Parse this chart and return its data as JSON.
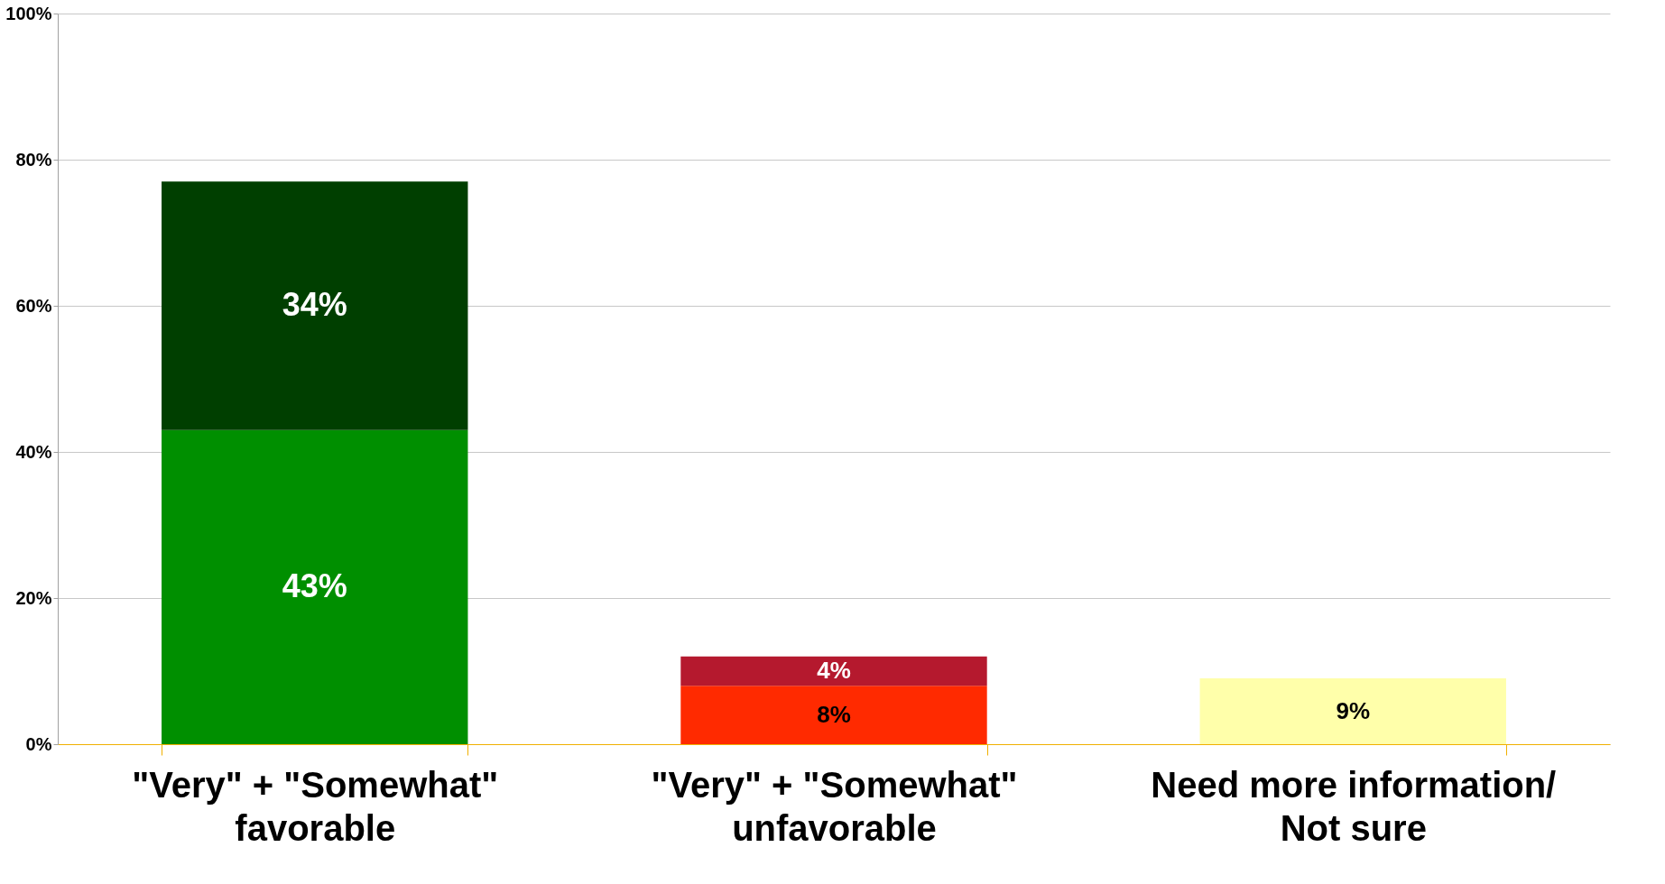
{
  "chart_data": {
    "type": "bar",
    "stacked": true,
    "categories": [
      "\"Very\" + \"Somewhat\"\nfavorable",
      "\"Very\" + \"Somewhat\"\nunfavorable",
      "Need more information/\nNot sure"
    ],
    "series": [
      {
        "colors": [
          "#008f00",
          "#ff2a00",
          "#ffffaa"
        ],
        "values": [
          43,
          8,
          9
        ]
      },
      {
        "colors": [
          "#003f00",
          "#b5192e",
          "#ffffaa"
        ],
        "values": [
          34,
          4,
          null
        ]
      }
    ],
    "ylim": [
      0,
      100
    ],
    "yticks": [
      {
        "value": 0,
        "label": "0%"
      },
      {
        "value": 20,
        "label": "20%"
      },
      {
        "value": 40,
        "label": "40%"
      },
      {
        "value": 60,
        "label": "60%"
      },
      {
        "value": 80,
        "label": "80%"
      },
      {
        "value": 100,
        "label": "100%"
      }
    ],
    "value_labels": [
      [
        "43%",
        "8%",
        "9%"
      ],
      [
        "34%",
        "4%",
        null
      ]
    ],
    "grid": "y",
    "legend": false
  }
}
